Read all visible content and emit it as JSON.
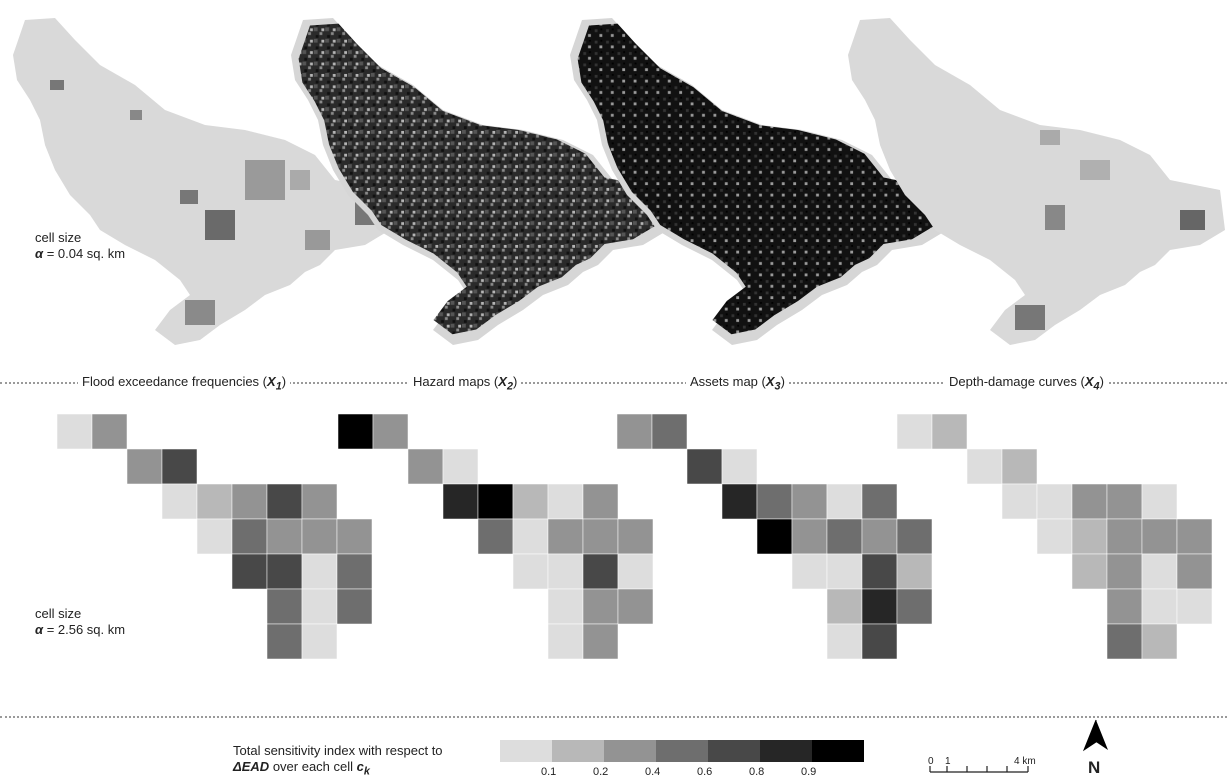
{
  "labels": {
    "fine_cell_size": "cell size",
    "fine_alpha": "α = 0.04 sq. km",
    "coarse_cell_size": "cell size",
    "coarse_alpha": "α = 2.56 sq. km"
  },
  "panels": [
    {
      "title": "Flood exceedance frequencies",
      "symbol": "X",
      "sub": "1"
    },
    {
      "title": "Hazard maps",
      "symbol": "X",
      "sub": "2"
    },
    {
      "title": "Assets map",
      "symbol": "X",
      "sub": "3"
    },
    {
      "title": "Depth-damage curves",
      "symbol": "X",
      "sub": "4"
    }
  ],
  "legend": {
    "line1": "Total sensitivity index with respect to",
    "line2_bold": "ΔEAD",
    "line2_rest": "over each cell",
    "line2_var": "c",
    "line2_sub": "k",
    "colors": [
      "#dddddd",
      "#b8b8b8",
      "#939393",
      "#6e6e6e",
      "#484848",
      "#262626",
      "#000000"
    ],
    "ticks": [
      "0.1",
      "0.2",
      "0.4",
      "0.6",
      "0.8",
      "0.9"
    ]
  },
  "scale_bar": {
    "labels": [
      "0",
      "1",
      "4 km"
    ]
  },
  "north_arrow": {
    "label": "N",
    "icon": "north-arrow-icon"
  },
  "grids": [
    [
      [
        0,
        0,
        0.05,
        null,
        null,
        null,
        null,
        null,
        null
      ],
      [
        0,
        1,
        0.35,
        null,
        null,
        null,
        null,
        null,
        null
      ],
      [
        1,
        2,
        0.35,
        null,
        null,
        null,
        null,
        null,
        null
      ],
      [
        1,
        3,
        0.8,
        null,
        null,
        null,
        null,
        null,
        null
      ],
      [
        2,
        3,
        0.05,
        null,
        null,
        null,
        null,
        null,
        null
      ],
      [
        2,
        4,
        0.2,
        null,
        null,
        null,
        null,
        null,
        null
      ],
      [
        2,
        5,
        0.35,
        null,
        null,
        null,
        null,
        null,
        null
      ],
      [
        2,
        6,
        0.8,
        null,
        null,
        null,
        null,
        null,
        null
      ],
      [
        2,
        7,
        0.35,
        null,
        null,
        null,
        null,
        null,
        null
      ],
      [
        3,
        4,
        0.05,
        null,
        null,
        null,
        null,
        null,
        null
      ],
      [
        3,
        5,
        0.65,
        null,
        null,
        null,
        null,
        null,
        null
      ],
      [
        3,
        6,
        0.35,
        null,
        null,
        null,
        null,
        null,
        null
      ],
      [
        3,
        7,
        0.35,
        null,
        null,
        null,
        null,
        null,
        null
      ],
      [
        3,
        8,
        0.35,
        null,
        null,
        null,
        null,
        null,
        null
      ],
      [
        4,
        5,
        0.8,
        null,
        null,
        null,
        null,
        null,
        null
      ],
      [
        4,
        6,
        0.8,
        null,
        null,
        null,
        null,
        null,
        null
      ],
      [
        4,
        7,
        0.05,
        null,
        null,
        null,
        null,
        null,
        null
      ],
      [
        4,
        8,
        0.65,
        null,
        null,
        null,
        null,
        null,
        null
      ],
      [
        5,
        6,
        0.65,
        null,
        null,
        null,
        null,
        null,
        null
      ],
      [
        5,
        7,
        0.05,
        null,
        null,
        null,
        null,
        null,
        null
      ],
      [
        5,
        8,
        0.65,
        null,
        null,
        null,
        null,
        null,
        null
      ],
      [
        6,
        6,
        0.65,
        null,
        null,
        null,
        null,
        null,
        null
      ],
      [
        6,
        7,
        0.05,
        null,
        null,
        null,
        null,
        null,
        null
      ]
    ],
    [
      [
        0,
        0,
        0.98,
        null,
        null,
        null,
        null,
        null,
        null
      ],
      [
        0,
        1,
        0.35,
        null,
        null,
        null,
        null,
        null,
        null
      ],
      [
        1,
        2,
        0.35,
        null,
        null,
        null,
        null,
        null,
        null
      ],
      [
        1,
        3,
        0.05,
        null,
        null,
        null,
        null,
        null,
        null
      ],
      [
        2,
        3,
        0.9,
        null,
        null,
        null,
        null,
        null,
        null
      ],
      [
        2,
        4,
        0.98,
        null,
        null,
        null,
        null,
        null,
        null
      ],
      [
        2,
        5,
        0.2,
        null,
        null,
        null,
        null,
        null,
        null
      ],
      [
        2,
        6,
        0.05,
        null,
        null,
        null,
        null,
        null,
        null
      ],
      [
        2,
        7,
        0.35,
        null,
        null,
        null,
        null,
        null,
        null
      ],
      [
        3,
        4,
        0.65,
        null,
        null,
        null,
        null,
        null,
        null
      ],
      [
        3,
        5,
        0.05,
        null,
        null,
        null,
        null,
        null,
        null
      ],
      [
        3,
        6,
        0.35,
        null,
        null,
        null,
        null,
        null,
        null
      ],
      [
        3,
        7,
        0.35,
        null,
        null,
        null,
        null,
        null,
        null
      ],
      [
        3,
        8,
        0.35,
        null,
        null,
        null,
        null,
        null,
        null
      ],
      [
        4,
        5,
        0.05,
        null,
        null,
        null,
        null,
        null,
        null
      ],
      [
        4,
        6,
        0.05,
        null,
        null,
        null,
        null,
        null,
        null
      ],
      [
        4,
        7,
        0.8,
        null,
        null,
        null,
        null,
        null,
        null
      ],
      [
        4,
        8,
        0.05,
        null,
        null,
        null,
        null,
        null,
        null
      ],
      [
        5,
        6,
        0.05,
        null,
        null,
        null,
        null,
        null,
        null
      ],
      [
        5,
        7,
        0.35,
        null,
        null,
        null,
        null,
        null,
        null
      ],
      [
        5,
        8,
        0.35,
        null,
        null,
        null,
        null,
        null,
        null
      ],
      [
        6,
        6,
        0.05,
        null,
        null,
        null,
        null,
        null,
        null
      ],
      [
        6,
        7,
        0.35,
        null,
        null,
        null,
        null,
        null,
        null
      ]
    ],
    [
      [
        0,
        0,
        0.35,
        null,
        null,
        null,
        null,
        null,
        null
      ],
      [
        0,
        1,
        0.65,
        null,
        null,
        null,
        null,
        null,
        null
      ],
      [
        1,
        2,
        0.8,
        null,
        null,
        null,
        null,
        null,
        null
      ],
      [
        1,
        3,
        0.05,
        null,
        null,
        null,
        null,
        null,
        null
      ],
      [
        2,
        3,
        0.9,
        null,
        null,
        null,
        null,
        null,
        null
      ],
      [
        2,
        4,
        0.65,
        null,
        null,
        null,
        null,
        null,
        null
      ],
      [
        2,
        5,
        0.35,
        null,
        null,
        null,
        null,
        null,
        null
      ],
      [
        2,
        6,
        0.05,
        null,
        null,
        null,
        null,
        null,
        null
      ],
      [
        2,
        7,
        0.65,
        null,
        null,
        null,
        null,
        null,
        null
      ],
      [
        3,
        4,
        0.98,
        null,
        null,
        null,
        null,
        null,
        null
      ],
      [
        3,
        5,
        0.35,
        null,
        null,
        null,
        null,
        null,
        null
      ],
      [
        3,
        6,
        0.65,
        null,
        null,
        null,
        null,
        null,
        null
      ],
      [
        3,
        7,
        0.35,
        null,
        null,
        null,
        null,
        null,
        null
      ],
      [
        3,
        8,
        0.65,
        null,
        null,
        null,
        null,
        null,
        null
      ],
      [
        4,
        5,
        0.05,
        null,
        null,
        null,
        null,
        null,
        null
      ],
      [
        4,
        6,
        0.05,
        null,
        null,
        null,
        null,
        null,
        null
      ],
      [
        4,
        7,
        0.8,
        null,
        null,
        null,
        null,
        null,
        null
      ],
      [
        4,
        8,
        0.2,
        null,
        null,
        null,
        null,
        null,
        null
      ],
      [
        5,
        6,
        0.2,
        null,
        null,
        null,
        null,
        null,
        null
      ],
      [
        5,
        7,
        0.9,
        null,
        null,
        null,
        null,
        null,
        null
      ],
      [
        5,
        8,
        0.65,
        null,
        null,
        null,
        null,
        null,
        null
      ],
      [
        6,
        6,
        0.05,
        null,
        null,
        null,
        null,
        null,
        null
      ],
      [
        6,
        7,
        0.8,
        null,
        null,
        null,
        null,
        null,
        null
      ]
    ],
    [
      [
        0,
        0,
        0.05,
        null,
        null,
        null,
        null,
        null,
        null
      ],
      [
        0,
        1,
        0.2,
        null,
        null,
        null,
        null,
        null,
        null
      ],
      [
        1,
        2,
        0.05,
        null,
        null,
        null,
        null,
        null,
        null
      ],
      [
        1,
        3,
        0.2,
        null,
        null,
        null,
        null,
        null,
        null
      ],
      [
        2,
        3,
        0.05,
        null,
        null,
        null,
        null,
        null,
        null
      ],
      [
        2,
        4,
        0.05,
        null,
        null,
        null,
        null,
        null,
        null
      ],
      [
        2,
        5,
        0.35,
        null,
        null,
        null,
        null,
        null,
        null
      ],
      [
        2,
        6,
        0.35,
        null,
        null,
        null,
        null,
        null,
        null
      ],
      [
        2,
        7,
        0.05,
        null,
        null,
        null,
        null,
        null,
        null
      ],
      [
        3,
        4,
        0.05,
        null,
        null,
        null,
        null,
        null,
        null
      ],
      [
        3,
        5,
        0.2,
        null,
        null,
        null,
        null,
        null,
        null
      ],
      [
        3,
        6,
        0.35,
        null,
        null,
        null,
        null,
        null,
        null
      ],
      [
        3,
        7,
        0.35,
        null,
        null,
        null,
        null,
        null,
        null
      ],
      [
        3,
        8,
        0.35,
        null,
        null,
        null,
        null,
        null,
        null
      ],
      [
        4,
        5,
        0.2,
        null,
        null,
        null,
        null,
        null,
        null
      ],
      [
        4,
        6,
        0.35,
        null,
        null,
        null,
        null,
        null,
        null
      ],
      [
        4,
        7,
        0.05,
        null,
        null,
        null,
        null,
        null,
        null
      ],
      [
        4,
        8,
        0.35,
        null,
        null,
        null,
        null,
        null,
        null
      ],
      [
        5,
        6,
        0.35,
        null,
        null,
        null,
        null,
        null,
        null
      ],
      [
        5,
        7,
        0.05,
        null,
        null,
        null,
        null,
        null,
        null
      ],
      [
        5,
        8,
        0.05,
        null,
        null,
        null,
        null,
        null,
        null
      ],
      [
        6,
        6,
        0.65,
        null,
        null,
        null,
        null,
        null,
        null
      ],
      [
        6,
        7,
        0.2,
        null,
        null,
        null,
        null,
        null,
        null
      ]
    ]
  ]
}
